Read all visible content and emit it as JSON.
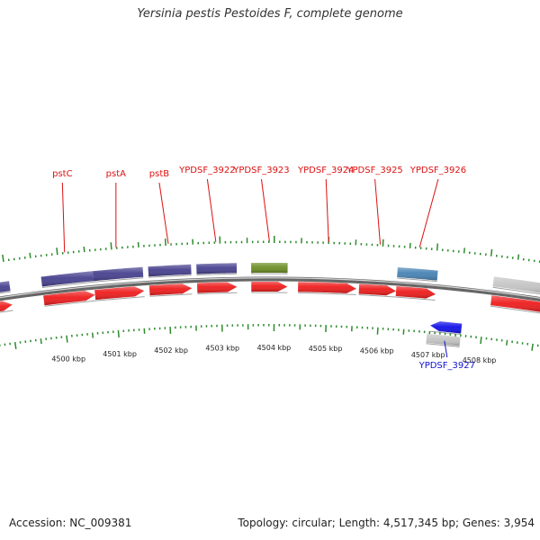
{
  "title": "Yersinia pestis Pestoides F, complete genome",
  "accession": "Accession: NC_009381",
  "summary": "Topology: circular; Length: 4,517,345 bp; Genes: 3,954",
  "scale": {
    "unit": "kbp",
    "labels": [
      4500,
      4501,
      4502,
      4503,
      4504,
      4505,
      4506,
      4507,
      4508
    ]
  },
  "features": [
    {
      "name": "",
      "row": "upper-cds",
      "start": 4498.65,
      "end": 4499.05,
      "color": "#46408e",
      "strand": "+"
    },
    {
      "name": "pstC",
      "row": "upper-cds",
      "start": 4499.65,
      "end": 4500.62,
      "color": "#46408e",
      "strand": "+"
    },
    {
      "name": "pstA",
      "row": "upper-cds",
      "start": 4500.62,
      "end": 4501.55,
      "color": "#46408e",
      "strand": "+"
    },
    {
      "name": "pstB",
      "row": "upper-cds",
      "start": 4501.65,
      "end": 4502.45,
      "color": "#46408e",
      "strand": "+"
    },
    {
      "name": "",
      "row": "upper-cds",
      "start": 4502.55,
      "end": 4503.3,
      "color": "#46408e",
      "strand": "+"
    },
    {
      "name": "",
      "row": "upper-cds",
      "start": 4503.57,
      "end": 4504.25,
      "color": "#6b8e23",
      "strand": "+"
    },
    {
      "name": "",
      "row": "upper-cds",
      "start": 4506.3,
      "end": 4507.05,
      "color": "#4682b4",
      "strand": "+"
    },
    {
      "name": "",
      "row": "upper-cds",
      "start": 4508.1,
      "end": 4509.3,
      "color": "#c4c4c4",
      "strand": "+"
    },
    {
      "name": "",
      "row": "plus-gene",
      "start": 4498.65,
      "end": 4499.05,
      "color": "#ee1c1c",
      "strand": "+"
    },
    {
      "name": "",
      "row": "plus-gene",
      "start": 4499.65,
      "end": 4500.62,
      "color": "#ee1c1c",
      "strand": "+"
    },
    {
      "name": "",
      "row": "plus-gene",
      "start": 4500.62,
      "end": 4501.55,
      "color": "#ee1c1c",
      "strand": "+"
    },
    {
      "name": "",
      "row": "plus-gene",
      "start": 4501.65,
      "end": 4502.45,
      "color": "#ee1c1c",
      "strand": "+"
    },
    {
      "name": "YPDSF_3922",
      "row": "plus-gene",
      "start": 4502.55,
      "end": 4503.3,
      "color": "#ee1c1c",
      "strand": "+"
    },
    {
      "name": "YPDSF_3923",
      "row": "plus-gene",
      "start": 4503.57,
      "end": 4504.25,
      "color": "#ee1c1c",
      "strand": "+"
    },
    {
      "name": "YPDSF_3924",
      "row": "plus-gene",
      "start": 4504.45,
      "end": 4505.55,
      "color": "#ee1c1c",
      "strand": "+"
    },
    {
      "name": "YPDSF_3925",
      "row": "plus-gene",
      "start": 4505.6,
      "end": 4506.3,
      "color": "#ee1c1c",
      "strand": "+"
    },
    {
      "name": "YPDSF_3926",
      "row": "plus-gene",
      "start": 4506.3,
      "end": 4507.05,
      "color": "#ee1c1c",
      "strand": "+"
    },
    {
      "name": "",
      "row": "plus-gene",
      "start": 4508.1,
      "end": 4509.3,
      "color": "#ee1c1c",
      "strand": "+"
    },
    {
      "name": "YPDSF_3927",
      "row": "minus-gene",
      "start": 4507.0,
      "end": 4507.6,
      "color": "#1010e8",
      "strand": "-"
    },
    {
      "name": "",
      "row": "lower-cds",
      "start": 4506.95,
      "end": 4507.6,
      "color": "#c4c4c4",
      "strand": "-"
    }
  ]
}
